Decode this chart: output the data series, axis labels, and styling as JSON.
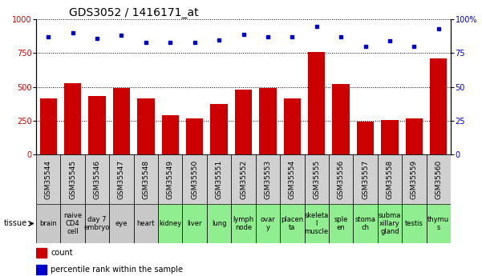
{
  "title": "GDS3052 / 1416171_at",
  "samples": [
    "GSM35544",
    "GSM35545",
    "GSM35546",
    "GSM35547",
    "GSM35548",
    "GSM35549",
    "GSM35550",
    "GSM35551",
    "GSM35552",
    "GSM35553",
    "GSM35554",
    "GSM35555",
    "GSM35556",
    "GSM35557",
    "GSM35558",
    "GSM35559",
    "GSM35560"
  ],
  "counts": [
    415,
    525,
    435,
    495,
    415,
    290,
    265,
    375,
    480,
    490,
    415,
    760,
    520,
    245,
    255,
    265,
    710
  ],
  "percentiles": [
    87,
    90,
    86,
    88,
    83,
    83,
    83,
    85,
    89,
    87,
    87,
    95,
    87,
    80,
    84,
    80,
    93
  ],
  "tissues": [
    "brain",
    "naive\nCD4\ncell",
    "day 7\nembryо",
    "eye",
    "heart",
    "kidney",
    "liver",
    "lung",
    "lymph\nnode",
    "ovar\ny",
    "placen\nta",
    "skeleta\nl\nmuscle",
    "sple\nen",
    "stoma\nch",
    "subma\nxillary\ngland",
    "testis",
    "thymu\ns"
  ],
  "tissue_colors": [
    "#c8c8c8",
    "#c8c8c8",
    "#c8c8c8",
    "#c8c8c8",
    "#c8c8c8",
    "#90ee90",
    "#90ee90",
    "#90ee90",
    "#90ee90",
    "#90ee90",
    "#90ee90",
    "#90ee90",
    "#90ee90",
    "#90ee90",
    "#90ee90",
    "#90ee90",
    "#90ee90"
  ],
  "gsm_row_color": "#d0d0d0",
  "bar_color": "#cc0000",
  "dot_color": "#0000cc",
  "ylim_left": [
    0,
    1000
  ],
  "ylim_right": [
    0,
    100
  ],
  "yticks_left": [
    0,
    250,
    500,
    750,
    1000
  ],
  "yticks_right": [
    0,
    25,
    50,
    75,
    100
  ],
  "grid_color": "#000000",
  "bg_color": "#ffffff",
  "title_fontsize": 10,
  "tick_fontsize": 7,
  "tissue_fontsize": 6,
  "legend_fontsize": 7
}
